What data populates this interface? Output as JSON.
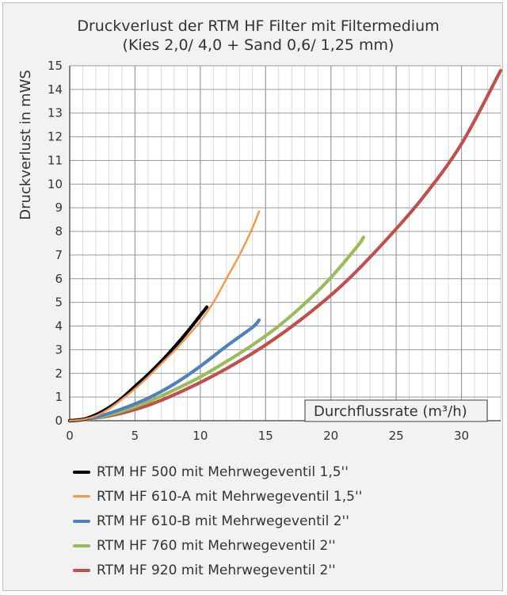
{
  "chart_data": {
    "type": "line",
    "title_lines": [
      "Druckverlust der RTM HF Filter mit Filtermedium",
      "(Kies 2,0/ 4,0 + Sand 0,6/ 1,25 mm)"
    ],
    "xlabel": "Durchflussrate (m³/h)",
    "ylabel": "Druckverlust in mWS",
    "xlim": [
      0,
      33
    ],
    "ylim": [
      0,
      15
    ],
    "x_ticks": [
      0,
      5,
      10,
      15,
      20,
      25,
      30
    ],
    "y_ticks": [
      0,
      1,
      2,
      3,
      4,
      5,
      6,
      7,
      8,
      9,
      10,
      11,
      12,
      13,
      14,
      15
    ],
    "grid": true,
    "legend_position": "bottom",
    "series": [
      {
        "name": "RTM HF 500 mit Mehrwegeventil 1,5''",
        "color": "#000000",
        "x": [
          0,
          1,
          2,
          3,
          4,
          5,
          6,
          7,
          8,
          9,
          10,
          10.5
        ],
        "y": [
          0,
          0.05,
          0.25,
          0.55,
          0.95,
          1.45,
          1.95,
          2.5,
          3.1,
          3.75,
          4.45,
          4.8
        ]
      },
      {
        "name": "RTM HF 610-A mit Mehrwegeventil 1,5''",
        "color": "#f79646",
        "x": [
          0,
          1,
          2,
          3,
          4,
          5,
          6,
          7,
          8,
          9,
          10,
          11,
          12,
          13,
          14,
          14.5
        ],
        "y": [
          0,
          0.05,
          0.2,
          0.5,
          0.9,
          1.35,
          1.85,
          2.4,
          2.95,
          3.55,
          4.2,
          5.0,
          6.0,
          7.0,
          8.15,
          8.85
        ]
      },
      {
        "name": "RTM HF 610-B mit Mehrwegeventil 2''",
        "color": "#4f81bd",
        "x": [
          0,
          2,
          4,
          6,
          8,
          10,
          12,
          14,
          14.5
        ],
        "y": [
          0,
          0.15,
          0.5,
          0.95,
          1.55,
          2.3,
          3.15,
          3.95,
          4.25
        ]
      },
      {
        "name": "RTM HF 760 mit Mehrwegeventil 2''",
        "color": "#9bbb59",
        "x": [
          0,
          2,
          4,
          6,
          8,
          10,
          12,
          14,
          16,
          18,
          20,
          22,
          22.5
        ],
        "y": [
          0,
          0.12,
          0.4,
          0.8,
          1.3,
          1.85,
          2.5,
          3.2,
          4.0,
          4.95,
          6.05,
          7.35,
          7.75
        ]
      },
      {
        "name": "RTM HF 920 mit Mehrwegeventil 2''",
        "color": "#c0504d",
        "x": [
          0,
          3,
          6,
          9,
          12,
          15,
          18,
          21,
          24,
          27,
          30,
          33
        ],
        "y": [
          0,
          0.2,
          0.65,
          1.35,
          2.2,
          3.2,
          4.4,
          5.8,
          7.5,
          9.4,
          11.7,
          14.8
        ]
      }
    ]
  }
}
